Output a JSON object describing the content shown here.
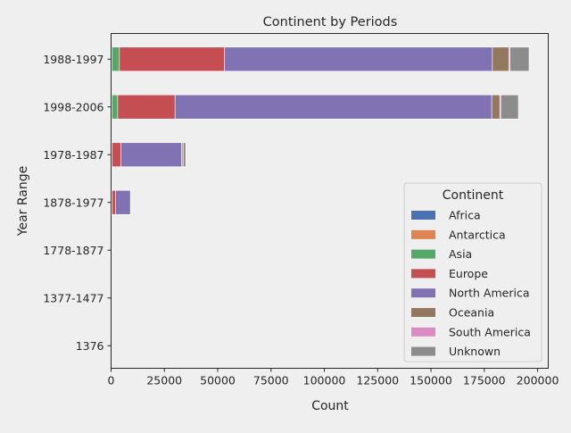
{
  "chart_data": {
    "type": "bar",
    "orientation": "horizontal",
    "stacked": true,
    "title": "Continent by Periods",
    "xlabel": "Count",
    "ylabel": "Year Range",
    "xlim": [
      0,
      205000
    ],
    "x_ticks": [
      0,
      25000,
      50000,
      75000,
      100000,
      125000,
      150000,
      175000,
      200000
    ],
    "x_tick_labels": [
      "0",
      "25000",
      "50000",
      "75000",
      "100000",
      "125000",
      "150000",
      "175000",
      "200000"
    ],
    "categories": [
      "1988-1997",
      "1998-2006",
      "1978-1987",
      "1878-1977",
      "1778-1877",
      "1377-1477",
      "1376"
    ],
    "grid": false,
    "legend": {
      "title": "Continent",
      "placement": "lower-right"
    },
    "series": [
      {
        "name": "Africa",
        "color": "#4c72b0",
        "values": [
          300,
          300,
          100,
          50,
          0,
          0,
          0
        ]
      },
      {
        "name": "Antarctica",
        "color": "#dd8452",
        "values": [
          100,
          100,
          100,
          300,
          0,
          0,
          0
        ]
      },
      {
        "name": "Asia",
        "color": "#55a868",
        "values": [
          3500,
          2700,
          300,
          100,
          0,
          0,
          0
        ]
      },
      {
        "name": "Europe",
        "color": "#c44e52",
        "values": [
          49300,
          26900,
          4100,
          1600,
          0,
          0,
          0
        ]
      },
      {
        "name": "North America",
        "color": "#8172b3",
        "values": [
          125600,
          148500,
          28500,
          7000,
          0,
          0,
          0
        ]
      },
      {
        "name": "Oceania",
        "color": "#937860",
        "values": [
          7700,
          3800,
          600,
          0,
          0,
          0,
          0
        ]
      },
      {
        "name": "South America",
        "color": "#da8bc3",
        "values": [
          500,
          400,
          100,
          0,
          0,
          0,
          0
        ]
      },
      {
        "name": "Unknown",
        "color": "#8c8c8c",
        "values": [
          9000,
          8300,
          1200,
          0,
          0,
          0,
          0
        ]
      }
    ]
  }
}
